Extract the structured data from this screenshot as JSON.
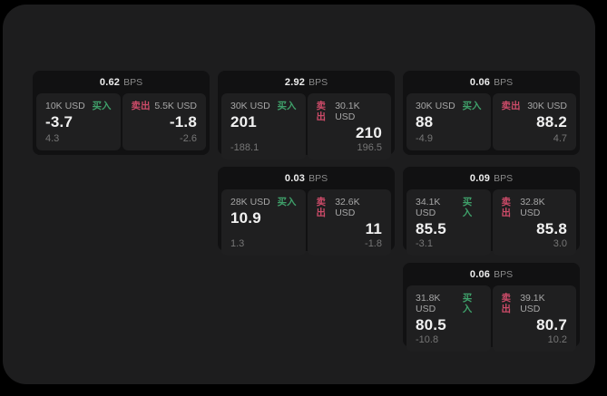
{
  "labels": {
    "buy": "买入",
    "sell": "卖出",
    "bps_unit": "BPS"
  },
  "colors": {
    "background": "#000000",
    "panel_bg": "#1d1d1e",
    "card_bg": "#111112",
    "tile_bg": "#1f1f20",
    "buy": "#3fa06a",
    "sell": "#cd4b69"
  },
  "cards": [
    {
      "col": 1,
      "row": 1,
      "bps": "0.62",
      "buy": {
        "size": "10K USD",
        "value": "-3.7",
        "delta": "4.3"
      },
      "sell": {
        "size": "5.5K USD",
        "value": "-1.8",
        "delta": "-2.6"
      }
    },
    {
      "col": 2,
      "row": 1,
      "bps": "2.92",
      "buy": {
        "size": "30K USD",
        "value": "201",
        "delta": "-188.1"
      },
      "sell": {
        "size": "30.1K USD",
        "value": "210",
        "delta": "196.5"
      }
    },
    {
      "col": 3,
      "row": 1,
      "bps": "0.06",
      "buy": {
        "size": "30K USD",
        "value": "88",
        "delta": "-4.9"
      },
      "sell": {
        "size": "30K USD",
        "value": "88.2",
        "delta": "4.7"
      }
    },
    {
      "col": 2,
      "row": 2,
      "bps": "0.03",
      "buy": {
        "size": "28K USD",
        "value": "10.9",
        "delta": "1.3"
      },
      "sell": {
        "size": "32.6K USD",
        "value": "11",
        "delta": "-1.8"
      }
    },
    {
      "col": 3,
      "row": 2,
      "bps": "0.09",
      "buy": {
        "size": "34.1K USD",
        "value": "85.5",
        "delta": "-3.1"
      },
      "sell": {
        "size": "32.8K USD",
        "value": "85.8",
        "delta": "3.0"
      }
    },
    {
      "col": 3,
      "row": 3,
      "bps": "0.06",
      "buy": {
        "size": "31.8K USD",
        "value": "80.5",
        "delta": "-10.8"
      },
      "sell": {
        "size": "39.1K USD",
        "value": "80.7",
        "delta": "10.2"
      }
    }
  ]
}
